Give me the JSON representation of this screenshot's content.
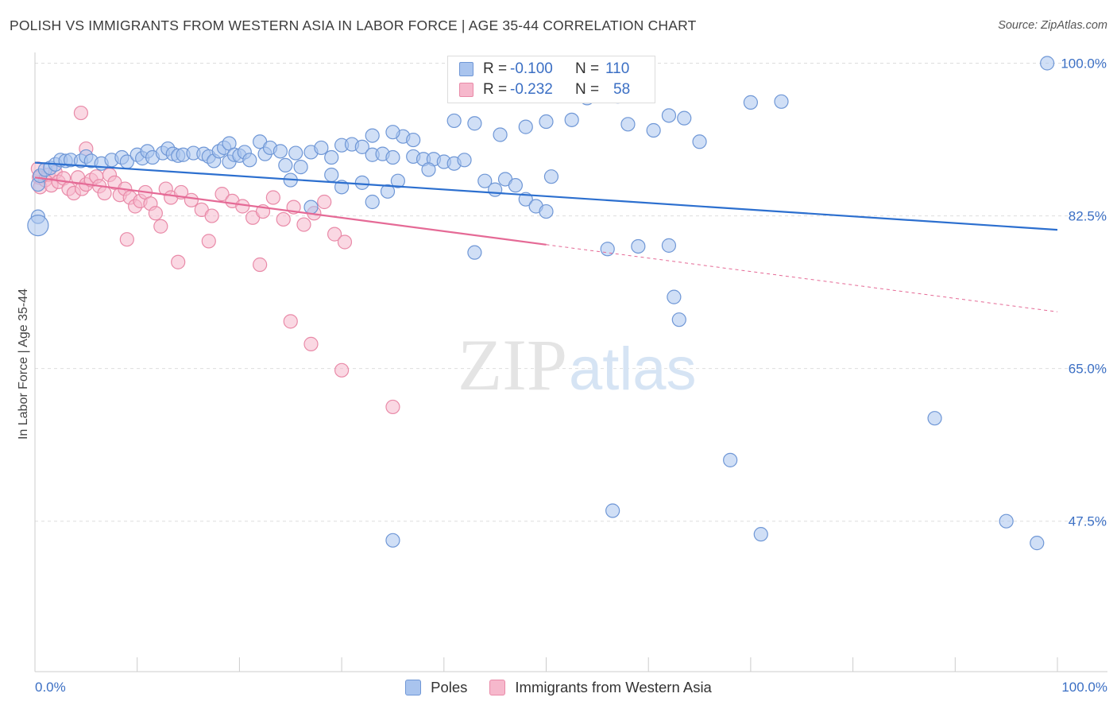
{
  "header": {
    "title": "POLISH VS IMMIGRANTS FROM WESTERN ASIA IN LABOR FORCE | AGE 35-44 CORRELATION CHART",
    "source": "Source: ZipAtlas.com"
  },
  "watermark": {
    "part1": "ZIP",
    "part2": "atlas"
  },
  "colors": {
    "blue_fill": "#a9c4ee",
    "blue_stroke": "#6f97d6",
    "blue_line": "#2c6fcf",
    "pink_fill": "#f6b8cc",
    "pink_stroke": "#e98aa8",
    "pink_line": "#e56a96",
    "tick_text": "#3b6fc4",
    "grid": "#dddddd"
  },
  "legend_top": {
    "rows": [
      {
        "r_label": "R =",
        "r_value": "-0.100",
        "n_label": "N =",
        "n_value": "110"
      },
      {
        "r_label": "R =",
        "r_value": "-0.232",
        "n_label": "N =",
        "n_value": "58"
      }
    ]
  },
  "legend_bottom": {
    "items": [
      {
        "label": "Poles"
      },
      {
        "label": "Immigrants from Western Asia"
      }
    ]
  },
  "chart_data": {
    "type": "scatter",
    "title": "POLISH VS IMMIGRANTS FROM WESTERN ASIA IN LABOR FORCE | AGE 35-44 CORRELATION CHART",
    "xlabel": "",
    "ylabel": "In Labor Force | Age 35-44",
    "xlim": [
      0,
      100
    ],
    "ylim": [
      30,
      100
    ],
    "x_tick_labels": [
      "0.0%",
      "100.0%"
    ],
    "y_ticks": [
      47.5,
      65.0,
      82.5,
      100.0
    ],
    "y_tick_labels": [
      "47.5%",
      "65.0%",
      "82.5%",
      "100.0%"
    ],
    "grid": true,
    "series": [
      {
        "name": "Poles",
        "R": -0.1,
        "N": 110,
        "trend": {
          "x": [
            0,
            100
          ],
          "y": [
            88.6,
            80.9
          ]
        },
        "points": [
          [
            0.3,
            86.1
          ],
          [
            0.3,
            82.4
          ],
          [
            0.3,
            81.4
          ],
          [
            0.5,
            87.1
          ],
          [
            1.0,
            87.8
          ],
          [
            1.5,
            88.0
          ],
          [
            2.0,
            88.4
          ],
          [
            2.5,
            88.9
          ],
          [
            3.0,
            88.8
          ],
          [
            3.5,
            88.9
          ],
          [
            4.5,
            88.8
          ],
          [
            5.0,
            89.3
          ],
          [
            5.5,
            88.8
          ],
          [
            6.5,
            88.5
          ],
          [
            7.5,
            88.9
          ],
          [
            8.5,
            89.2
          ],
          [
            9.0,
            88.7
          ],
          [
            10.0,
            89.5
          ],
          [
            10.5,
            89.1
          ],
          [
            11.0,
            89.9
          ],
          [
            11.5,
            89.2
          ],
          [
            12.5,
            89.7
          ],
          [
            13.0,
            90.2
          ],
          [
            13.5,
            89.6
          ],
          [
            14.0,
            89.4
          ],
          [
            14.5,
            89.5
          ],
          [
            15.5,
            89.7
          ],
          [
            16.5,
            89.6
          ],
          [
            17.0,
            89.3
          ],
          [
            17.5,
            88.8
          ],
          [
            18.0,
            89.9
          ],
          [
            18.5,
            90.3
          ],
          [
            19.0,
            90.8
          ],
          [
            19.0,
            88.7
          ],
          [
            19.5,
            89.5
          ],
          [
            20.0,
            89.4
          ],
          [
            20.5,
            89.8
          ],
          [
            21.0,
            88.9
          ],
          [
            22.0,
            91.0
          ],
          [
            22.5,
            89.6
          ],
          [
            23.0,
            90.3
          ],
          [
            24.0,
            89.9
          ],
          [
            24.5,
            88.3
          ],
          [
            25.0,
            86.6
          ],
          [
            25.5,
            89.7
          ],
          [
            26.0,
            88.1
          ],
          [
            27.0,
            89.8
          ],
          [
            28.0,
            90.3
          ],
          [
            29.0,
            89.2
          ],
          [
            30.0,
            90.6
          ],
          [
            31.0,
            90.7
          ],
          [
            32.0,
            90.4
          ],
          [
            33.0,
            89.5
          ],
          [
            34.0,
            89.6
          ],
          [
            35.0,
            89.2
          ],
          [
            36.0,
            91.6
          ],
          [
            37.0,
            89.3
          ],
          [
            38.0,
            89.0
          ],
          [
            39.0,
            89.0
          ],
          [
            40.0,
            88.7
          ],
          [
            41.0,
            88.5
          ],
          [
            42.0,
            88.9
          ],
          [
            38.5,
            87.8
          ],
          [
            34.5,
            85.3
          ],
          [
            35.5,
            86.5
          ],
          [
            33.0,
            84.1
          ],
          [
            27.0,
            83.5
          ],
          [
            30.0,
            85.8
          ],
          [
            32.0,
            86.3
          ],
          [
            29.0,
            87.2
          ],
          [
            44.0,
            86.5
          ],
          [
            45.0,
            85.5
          ],
          [
            46.0,
            86.7
          ],
          [
            47.0,
            86.0
          ],
          [
            48.0,
            84.4
          ],
          [
            49.0,
            83.6
          ],
          [
            50.0,
            83.0
          ],
          [
            43.0,
            78.3
          ],
          [
            56.0,
            78.7
          ],
          [
            59.0,
            79.0
          ],
          [
            62.0,
            79.1
          ],
          [
            62.5,
            73.2
          ],
          [
            63.0,
            70.6
          ],
          [
            68.0,
            54.5
          ],
          [
            56.5,
            48.7
          ],
          [
            71.0,
            46.0
          ],
          [
            35.0,
            45.3
          ],
          [
            50.0,
            93.3
          ],
          [
            50.5,
            87.0
          ],
          [
            58.0,
            93.0
          ],
          [
            60.5,
            92.3
          ],
          [
            62.0,
            94.0
          ],
          [
            63.5,
            93.7
          ],
          [
            65.0,
            91.0
          ],
          [
            52.5,
            93.5
          ],
          [
            48.0,
            92.7
          ],
          [
            45.5,
            91.8
          ],
          [
            43.0,
            93.1
          ],
          [
            41.0,
            93.4
          ],
          [
            37.0,
            91.2
          ],
          [
            35.0,
            92.1
          ],
          [
            33.0,
            91.7
          ],
          [
            54.0,
            96.0
          ],
          [
            57.0,
            96.2
          ],
          [
            70.0,
            95.5
          ],
          [
            73.0,
            95.6
          ],
          [
            88.0,
            59.3
          ],
          [
            95.0,
            47.5
          ],
          [
            98.0,
            45.0
          ],
          [
            99.0,
            100.0
          ]
        ]
      },
      {
        "name": "Immigrants from Western Asia",
        "R": -0.232,
        "N": 58,
        "trend": {
          "x": [
            0,
            50
          ],
          "y": [
            86.9,
            79.2
          ]
        },
        "trend_dashed": {
          "x": [
            50,
            100
          ],
          "y": [
            79.2,
            71.5
          ]
        },
        "points": [
          [
            0.3,
            87.9
          ],
          [
            0.4,
            86.9
          ],
          [
            0.5,
            85.8
          ],
          [
            1.0,
            86.6
          ],
          [
            1.3,
            87.2
          ],
          [
            1.6,
            86.0
          ],
          [
            2.0,
            87.5
          ],
          [
            2.3,
            86.4
          ],
          [
            2.8,
            86.8
          ],
          [
            3.3,
            85.6
          ],
          [
            3.8,
            85.1
          ],
          [
            4.2,
            86.9
          ],
          [
            4.6,
            85.6
          ],
          [
            5.0,
            86.1
          ],
          [
            5.5,
            86.6
          ],
          [
            6.0,
            87.0
          ],
          [
            6.3,
            85.9
          ],
          [
            6.8,
            85.1
          ],
          [
            7.3,
            87.2
          ],
          [
            7.8,
            86.3
          ],
          [
            8.3,
            84.9
          ],
          [
            8.8,
            85.6
          ],
          [
            9.3,
            84.6
          ],
          [
            9.8,
            83.6
          ],
          [
            10.3,
            84.2
          ],
          [
            10.8,
            85.2
          ],
          [
            11.3,
            83.9
          ],
          [
            11.8,
            82.8
          ],
          [
            12.3,
            81.3
          ],
          [
            12.8,
            85.6
          ],
          [
            13.3,
            84.6
          ],
          [
            14.3,
            85.2
          ],
          [
            15.3,
            84.3
          ],
          [
            16.3,
            83.2
          ],
          [
            17.3,
            82.5
          ],
          [
            18.3,
            85.0
          ],
          [
            19.3,
            84.2
          ],
          [
            20.3,
            83.6
          ],
          [
            21.3,
            82.3
          ],
          [
            22.3,
            83.0
          ],
          [
            23.3,
            84.6
          ],
          [
            24.3,
            82.1
          ],
          [
            25.3,
            83.5
          ],
          [
            26.3,
            81.5
          ],
          [
            27.3,
            82.8
          ],
          [
            28.3,
            84.1
          ],
          [
            29.3,
            80.4
          ],
          [
            30.3,
            79.5
          ],
          [
            22.0,
            76.9
          ],
          [
            25.0,
            70.4
          ],
          [
            27.0,
            67.8
          ],
          [
            30.0,
            64.8
          ],
          [
            35.0,
            60.6
          ],
          [
            17.0,
            79.6
          ],
          [
            14.0,
            77.2
          ],
          [
            9.0,
            79.8
          ],
          [
            5.0,
            90.2
          ],
          [
            4.5,
            94.3
          ]
        ]
      }
    ]
  }
}
